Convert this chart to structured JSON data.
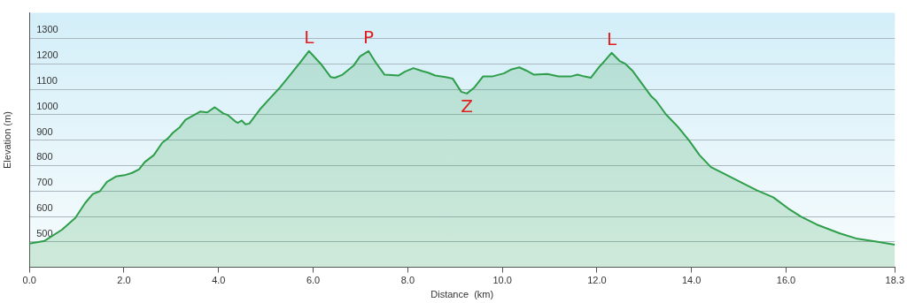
{
  "chart_data": {
    "type": "area",
    "xlabel": "Distance  (km)",
    "ylabel": "Elevation (m)",
    "x": [
      0,
      0.32,
      0.69,
      0.97,
      1.18,
      1.34,
      1.49,
      1.64,
      1.83,
      2.01,
      2.17,
      2.32,
      2.44,
      2.63,
      2.81,
      2.93,
      3.03,
      3.18,
      3.3,
      3.61,
      3.76,
      3.92,
      4.1,
      4.19,
      4.35,
      4.41,
      4.49,
      4.57,
      4.65,
      4.87,
      5.11,
      5.3,
      5.48,
      5.73,
      5.91,
      6.16,
      6.37,
      6.46,
      6.62,
      6.86,
      6.99,
      7.17,
      7.32,
      7.51,
      7.81,
      7.94,
      8.12,
      8.31,
      8.43,
      8.58,
      8.8,
      8.95,
      9.13,
      9.25,
      9.41,
      9.59,
      9.78,
      10.03,
      10.18,
      10.36,
      10.51,
      10.67,
      10.95,
      11.19,
      11.44,
      11.59,
      11.74,
      11.87,
      12.05,
      12.14,
      12.31,
      12.48,
      12.6,
      12.76,
      13.15,
      13.25,
      13.46,
      13.71,
      13.95,
      14.17,
      14.41,
      14.68,
      15.12,
      15.39,
      15.73,
      16.04,
      16.32,
      16.65,
      17.14,
      17.51,
      17.88,
      18.3
    ],
    "series": [
      {
        "color": "#2e9e4a",
        "values": [
          493,
          504,
          548,
          594,
          653,
          688,
          699,
          736,
          757,
          762,
          771,
          785,
          814,
          841,
          890,
          907,
          928,
          951,
          980,
          1012,
          1009,
          1029,
          1005,
          999,
          974,
          968,
          977,
          962,
          965,
          1020,
          1069,
          1107,
          1148,
          1206,
          1250,
          1200,
          1148,
          1145,
          1157,
          1194,
          1229,
          1250,
          1206,
          1157,
          1154,
          1169,
          1183,
          1171,
          1165,
          1154,
          1148,
          1142,
          1090,
          1083,
          1107,
          1150,
          1150,
          1162,
          1177,
          1186,
          1173,
          1157,
          1160,
          1150,
          1150,
          1157,
          1150,
          1145,
          1188,
          1206,
          1243,
          1211,
          1200,
          1171,
          1072,
          1055,
          1001,
          953,
          898,
          841,
          794,
          769,
          727,
          702,
          675,
          632,
          599,
          568,
          533,
          512,
          502,
          489
        ]
      }
    ],
    "xlim": [
      0,
      18.3
    ],
    "xticks": [
      {
        "value": 0,
        "label": "0.0"
      },
      {
        "value": 2,
        "label": "2.0"
      },
      {
        "value": 4,
        "label": "4.0"
      },
      {
        "value": 6,
        "label": "6.0"
      },
      {
        "value": 8,
        "label": "8.0"
      },
      {
        "value": 10,
        "label": "10.0"
      },
      {
        "value": 12,
        "label": "12.0"
      },
      {
        "value": 14,
        "label": "14.0"
      },
      {
        "value": 16,
        "label": "16.0"
      },
      {
        "value": 18.3,
        "label": "18.3"
      }
    ],
    "ylim": [
      400,
      1400
    ],
    "yticks": [
      500,
      600,
      700,
      800,
      900,
      1000,
      1100,
      1200,
      1300
    ],
    "grid": "y",
    "legend": false,
    "marker": "none",
    "line_style": "solid",
    "annotations": [
      {
        "text": "L",
        "x": 5.91,
        "y": 1250
      },
      {
        "text": "P",
        "x": 7.17,
        "y": 1250
      },
      {
        "text": "Z",
        "x": 9.25,
        "y": 1083
      },
      {
        "text": "L",
        "x": 12.31,
        "y": 1243
      }
    ]
  }
}
